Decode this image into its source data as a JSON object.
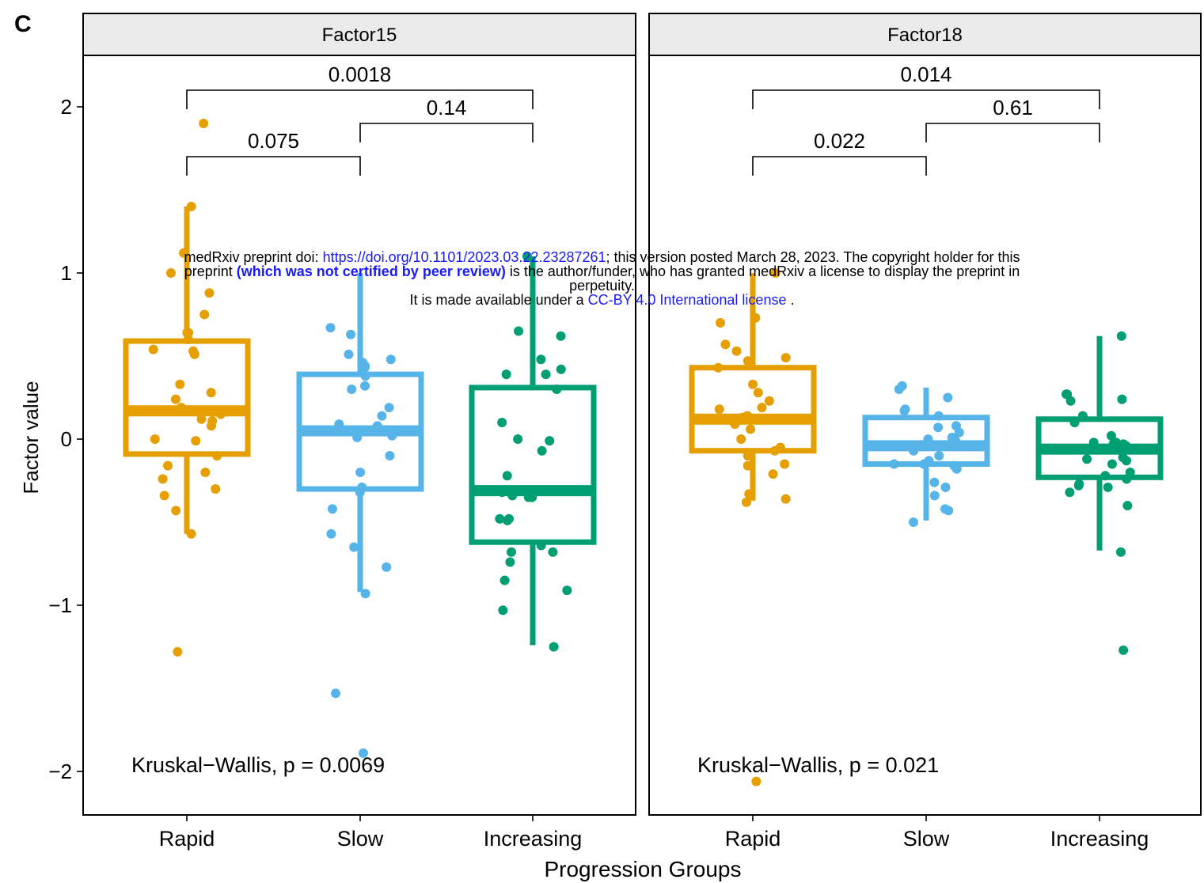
{
  "panel_label": "C",
  "colors": {
    "Rapid": "#E69F00",
    "Slow": "#56B4E9",
    "Increasing": "#009E73"
  },
  "watermark": {
    "line1_prefix": "medRxiv preprint doi: ",
    "line1_link": "https://doi.org/10.1101/2023.03.22.23287261",
    "line1_suffix": "; this version posted March 28, 2023. The copyright holder for this",
    "line2_prefix": "preprint ",
    "line2_bold": "(which was not certified by peer review)",
    "line2_suffix": " is the author/funder, who has granted medRxiv a license to display the preprint in",
    "line3": "perpetuity.",
    "line4_prefix": "It is made available under a ",
    "line4_link": "CC-BY 4.0 International license",
    "line4_suffix": " ."
  },
  "chart_data": [
    {
      "type": "box",
      "facet": "Factor15",
      "xlabel": "Progression Groups",
      "ylabel": "Factor value",
      "categories": [
        "Rapid",
        "Slow",
        "Increasing"
      ],
      "ylim": [
        -2.3,
        2.3
      ],
      "yticks": [
        -2,
        -1,
        0,
        1,
        2
      ],
      "yticklabels": [
        "−2",
        "−1",
        "0",
        "1",
        "2"
      ],
      "boxes": [
        {
          "group": "Rapid",
          "whisker_low": -0.57,
          "q1": -0.09,
          "median": 0.17,
          "q3": 0.59,
          "whisker_high": 1.4
        },
        {
          "group": "Slow",
          "whisker_low": -0.92,
          "q1": -0.3,
          "median": 0.05,
          "q3": 0.39,
          "whisker_high": 1.0
        },
        {
          "group": "Increasing",
          "whisker_low": -1.24,
          "q1": -0.62,
          "median": -0.31,
          "q3": 0.31,
          "whisker_high": 1.1
        }
      ],
      "points": [
        {
          "group": "Rapid",
          "values": [
            1.9,
            1.4,
            1.12,
            1.0,
            0.88,
            0.75,
            0.64,
            0.64,
            0.6,
            0.54,
            0.53,
            0.51,
            0.33,
            0.28,
            0.24,
            0.19,
            0.17,
            0.15,
            0.12,
            0.11,
            0.08,
            0.0,
            -0.01,
            -0.1,
            -0.16,
            -0.2,
            -0.24,
            -0.3,
            -0.34,
            -0.43,
            -0.57,
            -1.28
          ]
        },
        {
          "group": "Slow",
          "values": [
            0.67,
            0.63,
            0.51,
            0.48,
            0.46,
            0.44,
            0.43,
            0.38,
            0.32,
            0.3,
            0.19,
            0.14,
            0.09,
            0.08,
            0.05,
            0.02,
            0.01,
            -0.1,
            -0.2,
            -0.29,
            -0.32,
            -0.42,
            -0.57,
            -0.65,
            -0.77,
            -0.93,
            -1.53,
            -1.89
          ]
        },
        {
          "group": "Increasing",
          "values": [
            1.1,
            0.65,
            0.62,
            0.48,
            0.42,
            0.39,
            0.39,
            0.3,
            0.1,
            0.0,
            -0.01,
            -0.07,
            -0.22,
            -0.32,
            -0.34,
            -0.35,
            -0.35,
            -0.48,
            -0.48,
            -0.49,
            -0.64,
            -0.68,
            -0.68,
            -0.74,
            -0.85,
            -0.91,
            -1.03,
            -1.25
          ]
        }
      ],
      "comparisons": [
        {
          "from": "Rapid",
          "to": "Increasing",
          "p": "0.0018"
        },
        {
          "from": "Slow",
          "to": "Increasing",
          "p": "0.14"
        },
        {
          "from": "Rapid",
          "to": "Slow",
          "p": "0.075"
        }
      ],
      "test_label": "Kruskal−Wallis, p = 0.0069"
    },
    {
      "type": "box",
      "facet": "Factor18",
      "xlabel": "Progression Groups",
      "ylabel": "Factor value",
      "categories": [
        "Rapid",
        "Slow",
        "Increasing"
      ],
      "ylim": [
        -2.3,
        2.3
      ],
      "yticks": [
        -2,
        -1,
        0,
        1,
        2
      ],
      "boxes": [
        {
          "group": "Rapid",
          "whisker_low": -0.37,
          "q1": -0.07,
          "median": 0.12,
          "q3": 0.43,
          "whisker_high": 1.0
        },
        {
          "group": "Slow",
          "whisker_low": -0.49,
          "q1": -0.15,
          "median": -0.04,
          "q3": 0.13,
          "whisker_high": 0.31
        },
        {
          "group": "Increasing",
          "whisker_low": -0.67,
          "q1": -0.23,
          "median": -0.06,
          "q3": 0.12,
          "whisker_high": 0.62
        }
      ],
      "points": [
        {
          "group": "Rapid",
          "values": [
            1.0,
            0.73,
            0.7,
            0.57,
            0.53,
            0.49,
            0.47,
            0.43,
            0.33,
            0.28,
            0.23,
            0.19,
            0.18,
            0.14,
            0.13,
            0.09,
            0.06,
            0.0,
            -0.05,
            -0.07,
            -0.1,
            -0.15,
            -0.16,
            -0.21,
            -0.33,
            -0.36,
            -0.38,
            -2.06
          ]
        },
        {
          "group": "Slow",
          "values": [
            0.32,
            0.3,
            0.25,
            0.18,
            0.17,
            0.14,
            0.08,
            0.07,
            0.04,
            0.01,
            0.0,
            -0.01,
            -0.04,
            -0.07,
            -0.1,
            -0.13,
            -0.15,
            -0.15,
            -0.16,
            -0.18,
            -0.26,
            -0.29,
            -0.34,
            -0.42,
            -0.43,
            -0.5
          ]
        },
        {
          "group": "Increasing",
          "values": [
            0.62,
            0.27,
            0.27,
            0.24,
            0.23,
            0.14,
            0.1,
            0.02,
            -0.02,
            -0.02,
            -0.03,
            -0.03,
            -0.04,
            -0.06,
            -0.11,
            -0.12,
            -0.13,
            -0.15,
            -0.2,
            -0.22,
            -0.24,
            -0.27,
            -0.28,
            -0.29,
            -0.32,
            -0.4,
            -0.68,
            -1.27
          ]
        }
      ],
      "comparisons": [
        {
          "from": "Rapid",
          "to": "Increasing",
          "p": "0.014"
        },
        {
          "from": "Slow",
          "to": "Increasing",
          "p": "0.61"
        },
        {
          "from": "Rapid",
          "to": "Slow",
          "p": "0.022"
        }
      ],
      "test_label": "Kruskal−Wallis, p = 0.021"
    }
  ]
}
